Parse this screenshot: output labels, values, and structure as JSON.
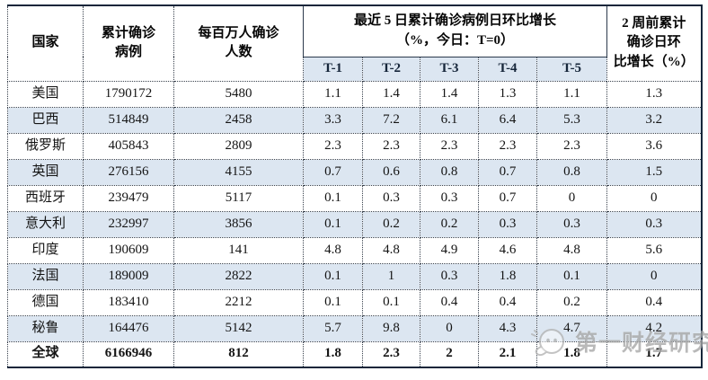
{
  "table": {
    "header": {
      "country": "国家",
      "cumulative_lines": [
        "累计确诊",
        "病例"
      ],
      "per_million_lines": [
        "每百万人确诊",
        "人数"
      ],
      "recent_group_lines": [
        "最近 5 日累计确诊病例日环比增长",
        "（%，今日：T=0）"
      ],
      "t_columns": [
        "T-1",
        "T-2",
        "T-3",
        "T-4",
        "T-5"
      ],
      "two_weeks_lines": [
        "2 周前累计",
        "确诊日环",
        "比增长（%）"
      ]
    },
    "rows": [
      {
        "country": "美国",
        "cumulative": "1790172",
        "per_million": "5480",
        "t": [
          "1.1",
          "1.4",
          "1.4",
          "1.3",
          "1.1"
        ],
        "two_weeks": "1.3",
        "total": false
      },
      {
        "country": "巴西",
        "cumulative": "514849",
        "per_million": "2458",
        "t": [
          "3.3",
          "7.2",
          "6.1",
          "6.4",
          "5.3"
        ],
        "two_weeks": "3.2",
        "total": false
      },
      {
        "country": "俄罗斯",
        "cumulative": "405843",
        "per_million": "2809",
        "t": [
          "2.3",
          "2.3",
          "2.3",
          "2.3",
          "2.3"
        ],
        "two_weeks": "3.6",
        "total": false
      },
      {
        "country": "英国",
        "cumulative": "276156",
        "per_million": "4155",
        "t": [
          "0.7",
          "0.6",
          "0.8",
          "0.7",
          "0.8"
        ],
        "two_weeks": "1.5",
        "total": false
      },
      {
        "country": "西班牙",
        "cumulative": "239479",
        "per_million": "5117",
        "t": [
          "0.1",
          "0.3",
          "0.3",
          "0.7",
          "0"
        ],
        "two_weeks": "0",
        "total": false
      },
      {
        "country": "意大利",
        "cumulative": "232997",
        "per_million": "3856",
        "t": [
          "0.1",
          "0.2",
          "0.2",
          "0.3",
          "0.3"
        ],
        "two_weeks": "0.3",
        "total": false
      },
      {
        "country": "印度",
        "cumulative": "190609",
        "per_million": "141",
        "t": [
          "4.8",
          "4.8",
          "4.9",
          "4.6",
          "4.8"
        ],
        "two_weeks": "5.6",
        "total": false
      },
      {
        "country": "法国",
        "cumulative": "189009",
        "per_million": "2822",
        "t": [
          "0.1",
          "1",
          "0.3",
          "1.8",
          "0.1"
        ],
        "two_weeks": "0",
        "total": false
      },
      {
        "country": "德国",
        "cumulative": "183410",
        "per_million": "2212",
        "t": [
          "0.1",
          "0.1",
          "0.4",
          "0.4",
          "0.2"
        ],
        "two_weeks": "0.4",
        "total": false
      },
      {
        "country": "秘鲁",
        "cumulative": "164476",
        "per_million": "5142",
        "t": [
          "5.7",
          "9.8",
          "0",
          "4.3",
          "4.7"
        ],
        "two_weeks": "4.2",
        "total": false
      },
      {
        "country": "全球",
        "cumulative": "6166946",
        "per_million": "812",
        "t": [
          "1.8",
          "2.3",
          "2",
          "2.1",
          "1.8"
        ],
        "two_weeks": "1.7",
        "total": true
      }
    ],
    "colors": {
      "row_alt_bg": "#dce6f1",
      "header_sub_bg": "#dce6f1",
      "outer_border": "#16263a",
      "inner_border": "#39414d"
    }
  },
  "chart_data": {
    "type": "table",
    "title": "最近 5 日累计确诊病例日环比增长（%，今日：T=0）",
    "columns": [
      "国家",
      "累计确诊病例",
      "每百万人确诊人数",
      "T-1",
      "T-2",
      "T-3",
      "T-4",
      "T-5",
      "2 周前累计确诊日环比增长（%）"
    ],
    "rows": [
      [
        "美国",
        1790172,
        5480,
        1.1,
        1.4,
        1.4,
        1.3,
        1.1,
        1.3
      ],
      [
        "巴西",
        514849,
        2458,
        3.3,
        7.2,
        6.1,
        6.4,
        5.3,
        3.2
      ],
      [
        "俄罗斯",
        405843,
        2809,
        2.3,
        2.3,
        2.3,
        2.3,
        2.3,
        3.6
      ],
      [
        "英国",
        276156,
        4155,
        0.7,
        0.6,
        0.8,
        0.7,
        0.8,
        1.5
      ],
      [
        "西班牙",
        239479,
        5117,
        0.1,
        0.3,
        0.3,
        0.7,
        0,
        0
      ],
      [
        "意大利",
        232997,
        3856,
        0.1,
        0.2,
        0.2,
        0.3,
        0.3,
        0.3
      ],
      [
        "印度",
        190609,
        141,
        4.8,
        4.8,
        4.9,
        4.6,
        4.8,
        5.6
      ],
      [
        "法国",
        189009,
        2822,
        0.1,
        1,
        0.3,
        1.8,
        0.1,
        0
      ],
      [
        "德国",
        183410,
        2212,
        0.1,
        0.1,
        0.4,
        0.4,
        0.2,
        0.4
      ],
      [
        "秘鲁",
        164476,
        5142,
        5.7,
        9.8,
        0,
        4.3,
        4.7,
        4.2
      ],
      [
        "全球",
        6166946,
        812,
        1.8,
        2.3,
        2,
        2.1,
        1.8,
        1.7
      ]
    ]
  },
  "watermark": {
    "text": "第一财经研究院",
    "logo": "cbn-face-icon",
    "color": "#a6a6a6"
  }
}
